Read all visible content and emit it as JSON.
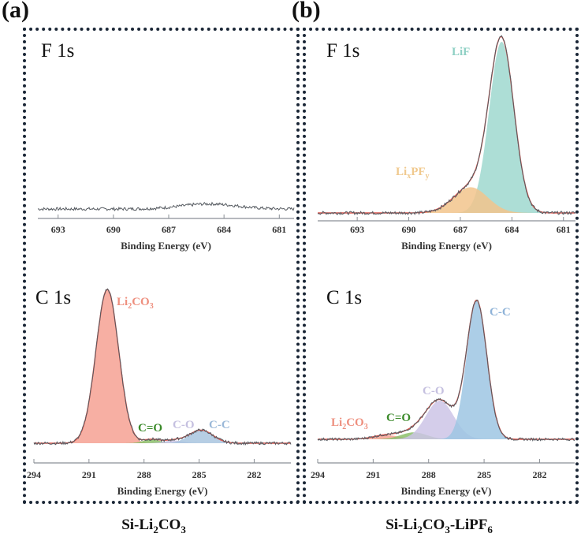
{
  "panels": [
    {
      "letter": "(a)",
      "caption_parts": [
        "Si-Li",
        "2",
        "CO",
        "3"
      ]
    },
    {
      "letter": "(b)",
      "caption_parts": [
        "Si-Li",
        "2",
        "CO",
        "3",
        "-LiPF",
        "6"
      ]
    }
  ],
  "chart_data": [
    {
      "id": "a-F1s",
      "type": "area",
      "title": "F 1s",
      "xlabel": "Binding Energy (eV)",
      "xlim": [
        694.1,
        680.2
      ],
      "xticks": [
        693,
        690,
        687,
        684,
        681
      ],
      "baseline_noise": true,
      "bump": {
        "center": 684.8,
        "amp": 0.03,
        "sigma": 1.5
      },
      "components": [],
      "envelope": false
    },
    {
      "id": "b-F1s",
      "type": "area",
      "title": "F 1s",
      "xlabel": "Binding Energy (eV)",
      "xlim": [
        695.3,
        680.3
      ],
      "xticks": [
        693,
        690,
        687,
        684,
        681
      ],
      "components": [
        {
          "name": "LiF",
          "label": "LiF",
          "center": 684.6,
          "amp": 1.0,
          "sigma": 0.72,
          "color": "#9fd8cf",
          "label_color": "#8fd0c4"
        },
        {
          "name": "LixPFy",
          "label": "LixPFy",
          "center": 686.4,
          "amp": 0.15,
          "sigma": 1.0,
          "color": "#f2c48c",
          "label_color": "#f0c98e"
        }
      ],
      "envelope": true
    },
    {
      "id": "a-C1s",
      "type": "area",
      "title": "C 1s",
      "xlabel": "Binding Energy (eV)",
      "xlim": [
        294,
        280
      ],
      "xticks": [
        294,
        291,
        288,
        285,
        282
      ],
      "components": [
        {
          "name": "Li2CO3",
          "label": "Li2CO3",
          "center": 290.0,
          "amp": 1.0,
          "sigma": 0.62,
          "color": "#f6a193",
          "label_color": "#ee8f7e"
        },
        {
          "name": "C=O",
          "label": "C=O",
          "center": 287.6,
          "amp": 0.025,
          "sigma": 0.45,
          "color": "#8cbf6a",
          "label_color": "#3b8a2a"
        },
        {
          "name": "C-O",
          "label": "C-O",
          "center": 286.4,
          "amp": 0.018,
          "sigma": 0.5,
          "color": "#c9c2e2",
          "label_color": "#c5c0e0"
        },
        {
          "name": "C-C",
          "label": "C-C",
          "center": 284.9,
          "amp": 0.085,
          "sigma": 0.65,
          "color": "#a9c6df",
          "label_color": "#9ab8d8"
        }
      ],
      "envelope": true
    },
    {
      "id": "b-C1s",
      "type": "area",
      "title": "C 1s",
      "xlabel": "Binding Energy (eV)",
      "xlim": [
        294,
        280.1
      ],
      "xticks": [
        294,
        291,
        288,
        285,
        282
      ],
      "components": [
        {
          "name": "Li2CO3",
          "label": "Li2CO3",
          "center": 290.3,
          "amp": 0.03,
          "sigma": 0.7,
          "color": "#f6a193",
          "label_color": "#ee8f7e"
        },
        {
          "name": "C=O",
          "label": "C=O",
          "center": 288.8,
          "amp": 0.05,
          "sigma": 0.7,
          "color": "#8cbf6a",
          "label_color": "#3b8a2a"
        },
        {
          "name": "C-O",
          "label": "C-O",
          "center": 287.4,
          "amp": 0.28,
          "sigma": 0.75,
          "color": "#cdc4e6",
          "label_color": "#c5c0e0"
        },
        {
          "name": "C-C",
          "label": "C-C",
          "center": 285.4,
          "amp": 1.0,
          "sigma": 0.55,
          "color": "#9ec6e3",
          "label_color": "#8fb3d8"
        }
      ],
      "envelope": true
    }
  ]
}
